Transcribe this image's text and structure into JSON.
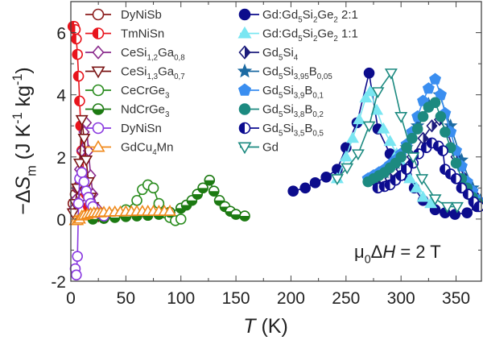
{
  "chart_data": {
    "type": "scatter",
    "xlabel": [
      [
        "T",
        "it"
      ],
      [
        " (K)",
        ""
      ]
    ],
    "ylabel": [
      [
        "−Δ",
        ""
      ],
      [
        "S",
        "it"
      ],
      [
        "m",
        "sub"
      ],
      [
        "  (J K",
        ""
      ],
      [
        "-1",
        "sup"
      ],
      [
        " kg",
        ""
      ],
      [
        "-1",
        "sup"
      ],
      [
        ")",
        ""
      ]
    ],
    "annotation": [
      [
        "μ",
        ""
      ],
      [
        "0",
        "sub"
      ],
      [
        "Δ",
        ""
      ],
      [
        "H",
        "it"
      ],
      [
        " = 2 T",
        ""
      ]
    ],
    "xlim": [
      0,
      373
    ],
    "ylim": [
      -2,
      7
    ],
    "xticks": [
      "0",
      "50",
      "100",
      "150",
      "200",
      "250",
      "300",
      "350"
    ],
    "yticks": [
      "-2",
      "0",
      "2",
      "4",
      "6"
    ],
    "grid": false,
    "legend_placement": "top (two columns)",
    "series": [
      {
        "label": [
          [
            "DyNiSb",
            ""
          ]
        ],
        "color": "#8b1c1c",
        "marker": "circle",
        "fill": "open",
        "x": [
          2,
          4,
          6,
          8,
          10,
          12,
          15,
          18,
          22,
          26
        ],
        "y": [
          0.5,
          0.8,
          1.0,
          1.1,
          0.9,
          0.7,
          0.5,
          0.3,
          0.2,
          0.1
        ]
      },
      {
        "label": [
          [
            "TmNiSn",
            ""
          ]
        ],
        "color": "#e8141c",
        "marker": "circle",
        "fill": "left",
        "x": [
          2,
          3,
          4,
          5,
          6,
          7,
          8,
          9,
          10,
          12,
          14,
          16,
          18,
          20
        ],
        "y": [
          6.2,
          6.2,
          6.1,
          5.8,
          5.3,
          4.6,
          3.8,
          3.0,
          2.2,
          1.4,
          0.8,
          0.4,
          0.2,
          0.1
        ]
      },
      {
        "label": [
          [
            "CeSi",
            ""
          ],
          [
            "1,2",
            "sub"
          ],
          [
            "Ga",
            ""
          ],
          [
            "0,8",
            "sub"
          ]
        ],
        "color": "#8a2a8c",
        "marker": "diamond",
        "fill": "open",
        "x": [
          2,
          4,
          6,
          8,
          10,
          12,
          14,
          16,
          18,
          20,
          25,
          30
        ],
        "y": [
          0.3,
          0.6,
          1.0,
          1.6,
          2.2,
          2.8,
          3.1,
          2.2,
          1.4,
          0.8,
          0.3,
          0.1
        ]
      },
      {
        "label": [
          [
            "CeSi",
            ""
          ],
          [
            "1,3",
            "sub"
          ],
          [
            "Ga",
            ""
          ],
          [
            "0,7",
            "sub"
          ]
        ],
        "color": "#7a1414",
        "marker": "tridown",
        "fill": "open",
        "x": [
          2,
          4,
          6,
          8,
          10,
          12,
          14,
          16,
          18,
          20,
          25
        ],
        "y": [
          0.2,
          0.5,
          1.0,
          1.8,
          3.2,
          2.6,
          1.9,
          1.2,
          0.7,
          0.4,
          0.1
        ]
      },
      {
        "label": [
          [
            "CeCrGe",
            ""
          ],
          [
            "3",
            "sub"
          ]
        ],
        "color": "#2a8c1e",
        "marker": "circle",
        "fill": "open",
        "x": [
          30,
          40,
          50,
          60,
          65,
          70,
          75,
          80,
          85,
          90,
          95,
          100
        ],
        "y": [
          0.1,
          0.15,
          0.3,
          0.6,
          0.95,
          1.1,
          1.0,
          0.5,
          0.2,
          0.05,
          -0.05,
          0.0
        ]
      },
      {
        "label": [
          [
            "NdCrGe",
            ""
          ],
          [
            "3",
            "sub"
          ]
        ],
        "color": "#1c7a12",
        "marker": "circle",
        "fill": "bottom",
        "x": [
          20,
          30,
          40,
          50,
          60,
          70,
          80,
          90,
          100,
          105,
          110,
          115,
          120,
          126,
          130,
          135,
          140,
          145,
          150,
          158
        ],
        "y": [
          0.0,
          0.02,
          0.05,
          0.08,
          0.1,
          0.12,
          0.15,
          0.22,
          0.35,
          0.45,
          0.6,
          0.8,
          1.0,
          1.25,
          0.9,
          0.6,
          0.4,
          0.25,
          0.15,
          0.1
        ]
      },
      {
        "label": [
          [
            "DyNiSn",
            ""
          ]
        ],
        "color": "#8a3ae0",
        "marker": "circle",
        "fill": "open",
        "x": [
          4,
          5,
          6,
          7,
          8,
          10,
          12,
          14,
          16,
          18,
          20,
          25,
          30
        ],
        "y": [
          -1.6,
          -1.8,
          -1.2,
          0.5,
          1.3,
          1.5,
          1.2,
          0.9,
          0.7,
          0.5,
          0.4,
          0.2,
          0.1
        ]
      },
      {
        "label": [
          [
            "GdCu",
            ""
          ],
          [
            "4",
            "sub"
          ],
          [
            "Mn",
            ""
          ]
        ],
        "color": "#f08a1c",
        "marker": "triup",
        "fill": "open",
        "x": [
          4,
          6,
          8,
          10,
          12,
          15,
          18,
          21,
          24,
          27,
          30,
          35,
          40,
          45,
          50,
          55,
          60,
          65,
          70,
          75,
          80,
          85,
          90
        ],
        "y": [
          -0.05,
          -0.05,
          0.0,
          0.1,
          0.12,
          0.15,
          0.18,
          0.2,
          0.2,
          0.2,
          0.22,
          0.22,
          0.23,
          0.23,
          0.24,
          0.24,
          0.25,
          0.25,
          0.25,
          0.25,
          0.25,
          0.25,
          0.25
        ]
      },
      {
        "label": [
          [
            "Gd:Gd",
            ""
          ],
          [
            "5",
            "sub"
          ],
          [
            "Si",
            ""
          ],
          [
            "2",
            "sub"
          ],
          [
            "Ge",
            ""
          ],
          [
            "2",
            "sub"
          ],
          [
            " 2:1",
            ""
          ]
        ],
        "color": "#0c0c8c",
        "marker": "circle",
        "fill": "filled",
        "x": [
          202,
          213,
          222,
          232,
          242,
          250,
          260,
          271,
          279,
          290,
          298,
          305,
          312,
          320,
          331,
          340,
          349,
          360,
          369
        ],
        "y": [
          0.9,
          1.0,
          1.17,
          1.35,
          1.6,
          2.3,
          3.1,
          4.7,
          2.9,
          2.1,
          1.8,
          1.4,
          1.0,
          0.6,
          0.3,
          0.2,
          0.15,
          0.2,
          0.4
        ]
      },
      {
        "label": [
          [
            "Gd:Gd",
            ""
          ],
          [
            "5",
            "sub"
          ],
          [
            "Si",
            ""
          ],
          [
            "2",
            "sub"
          ],
          [
            "Ge",
            ""
          ],
          [
            "2",
            "sub"
          ],
          [
            " 1:1",
            ""
          ]
        ],
        "color": "#7ae6f2",
        "marker": "triup",
        "fill": "filled",
        "x": [
          242,
          250,
          256,
          262,
          268,
          272,
          278,
          284,
          290,
          296,
          302,
          308,
          314,
          320,
          327
        ],
        "y": [
          1.3,
          2.0,
          2.6,
          3.2,
          3.9,
          4.1,
          3.5,
          2.9,
          2.5,
          2.1,
          1.7,
          1.3,
          1.0,
          0.7,
          0.5
        ]
      },
      {
        "label": [
          [
            "Gd",
            ""
          ],
          [
            "5",
            "sub"
          ],
          [
            "Si",
            ""
          ],
          [
            "4",
            "sub"
          ]
        ],
        "color": "#1c1c7c",
        "marker": "diamond",
        "fill": "right",
        "x": [
          279,
          290,
          300,
          310,
          320,
          328,
          335,
          342,
          350,
          358,
          366,
          372
        ],
        "y": [
          1.1,
          1.3,
          1.6,
          2.0,
          2.6,
          3.0,
          3.2,
          2.8,
          2.0,
          1.3,
          0.8,
          0.5
        ]
      },
      {
        "label": [
          [
            "Gd",
            ""
          ],
          [
            "5",
            "sub"
          ],
          [
            "Si",
            ""
          ],
          [
            "3,95",
            "sub"
          ],
          [
            "B",
            ""
          ],
          [
            "0,05",
            "sub"
          ]
        ],
        "color": "#1c6aa2",
        "marker": "star",
        "fill": "filled",
        "x": [
          275,
          285,
          295,
          305,
          315,
          325,
          335,
          345,
          355,
          365,
          372
        ],
        "y": [
          1.3,
          1.5,
          1.8,
          2.3,
          3.0,
          3.7,
          4.0,
          3.0,
          1.9,
          1.0,
          0.6
        ]
      },
      {
        "label": [
          [
            "Gd",
            ""
          ],
          [
            "5",
            "sub"
          ],
          [
            "Si",
            ""
          ],
          [
            "3,9",
            "sub"
          ],
          [
            "B",
            ""
          ],
          [
            "0,1",
            "sub"
          ]
        ],
        "color": "#3a8ef0",
        "marker": "pentagon",
        "fill": "filled",
        "x": [
          270,
          275,
          280,
          285,
          290,
          295,
          300,
          305,
          310,
          315,
          320,
          325,
          331,
          336,
          340,
          345,
          350,
          355,
          360,
          365,
          370
        ],
        "y": [
          1.3,
          1.4,
          1.5,
          1.6,
          1.75,
          1.9,
          2.1,
          2.4,
          2.8,
          3.3,
          3.8,
          4.2,
          4.5,
          4.0,
          3.4,
          2.8,
          2.2,
          1.7,
          1.2,
          0.9,
          0.6
        ]
      },
      {
        "label": [
          [
            "Gd",
            ""
          ],
          [
            "5",
            "sub"
          ],
          [
            "Si",
            ""
          ],
          [
            "3,8",
            "sub"
          ],
          [
            "B",
            ""
          ],
          [
            "0,2",
            "sub"
          ]
        ],
        "color": "#1c8a80",
        "marker": "circle",
        "fill": "filled",
        "x": [
          270,
          275,
          280,
          285,
          290,
          295,
          300,
          305,
          310,
          315,
          320,
          325,
          331,
          336,
          340,
          345,
          350,
          355,
          360,
          365,
          370
        ],
        "y": [
          1.2,
          1.3,
          1.4,
          1.5,
          1.65,
          1.8,
          2.0,
          2.3,
          2.6,
          2.9,
          3.3,
          3.6,
          3.75,
          3.3,
          2.8,
          2.3,
          1.8,
          1.3,
          1.0,
          0.7,
          0.5
        ]
      },
      {
        "label": [
          [
            "Gd",
            ""
          ],
          [
            "5",
            "sub"
          ],
          [
            "Si",
            ""
          ],
          [
            "3,5",
            "sub"
          ],
          [
            "B",
            ""
          ],
          [
            "0,5",
            "sub"
          ]
        ],
        "color": "#0c0c90",
        "marker": "circle",
        "fill": "left",
        "x": [
          279,
          285,
          290,
          295,
          300,
          305,
          311,
          316,
          323,
          328,
          334,
          338,
          340,
          345,
          350,
          355,
          361,
          366,
          371
        ],
        "y": [
          1.0,
          1.05,
          1.1,
          1.25,
          1.4,
          1.6,
          1.8,
          2.1,
          2.3,
          2.45,
          2.35,
          2.2,
          1.6,
          1.45,
          1.3,
          1.0,
          0.8,
          0.55,
          0.4
        ]
      },
      {
        "label": [
          [
            "Gd",
            ""
          ]
        ],
        "color": "#1c8a80",
        "marker": "tridown",
        "fill": "open",
        "x": [
          242,
          251,
          261,
          271,
          279,
          291,
          300,
          311,
          319,
          331,
          342,
          351
        ],
        "y": [
          1.3,
          1.65,
          2.1,
          3.0,
          4.1,
          4.7,
          3.3,
          2.0,
          1.3,
          0.65,
          0.4,
          0.4
        ]
      }
    ]
  }
}
